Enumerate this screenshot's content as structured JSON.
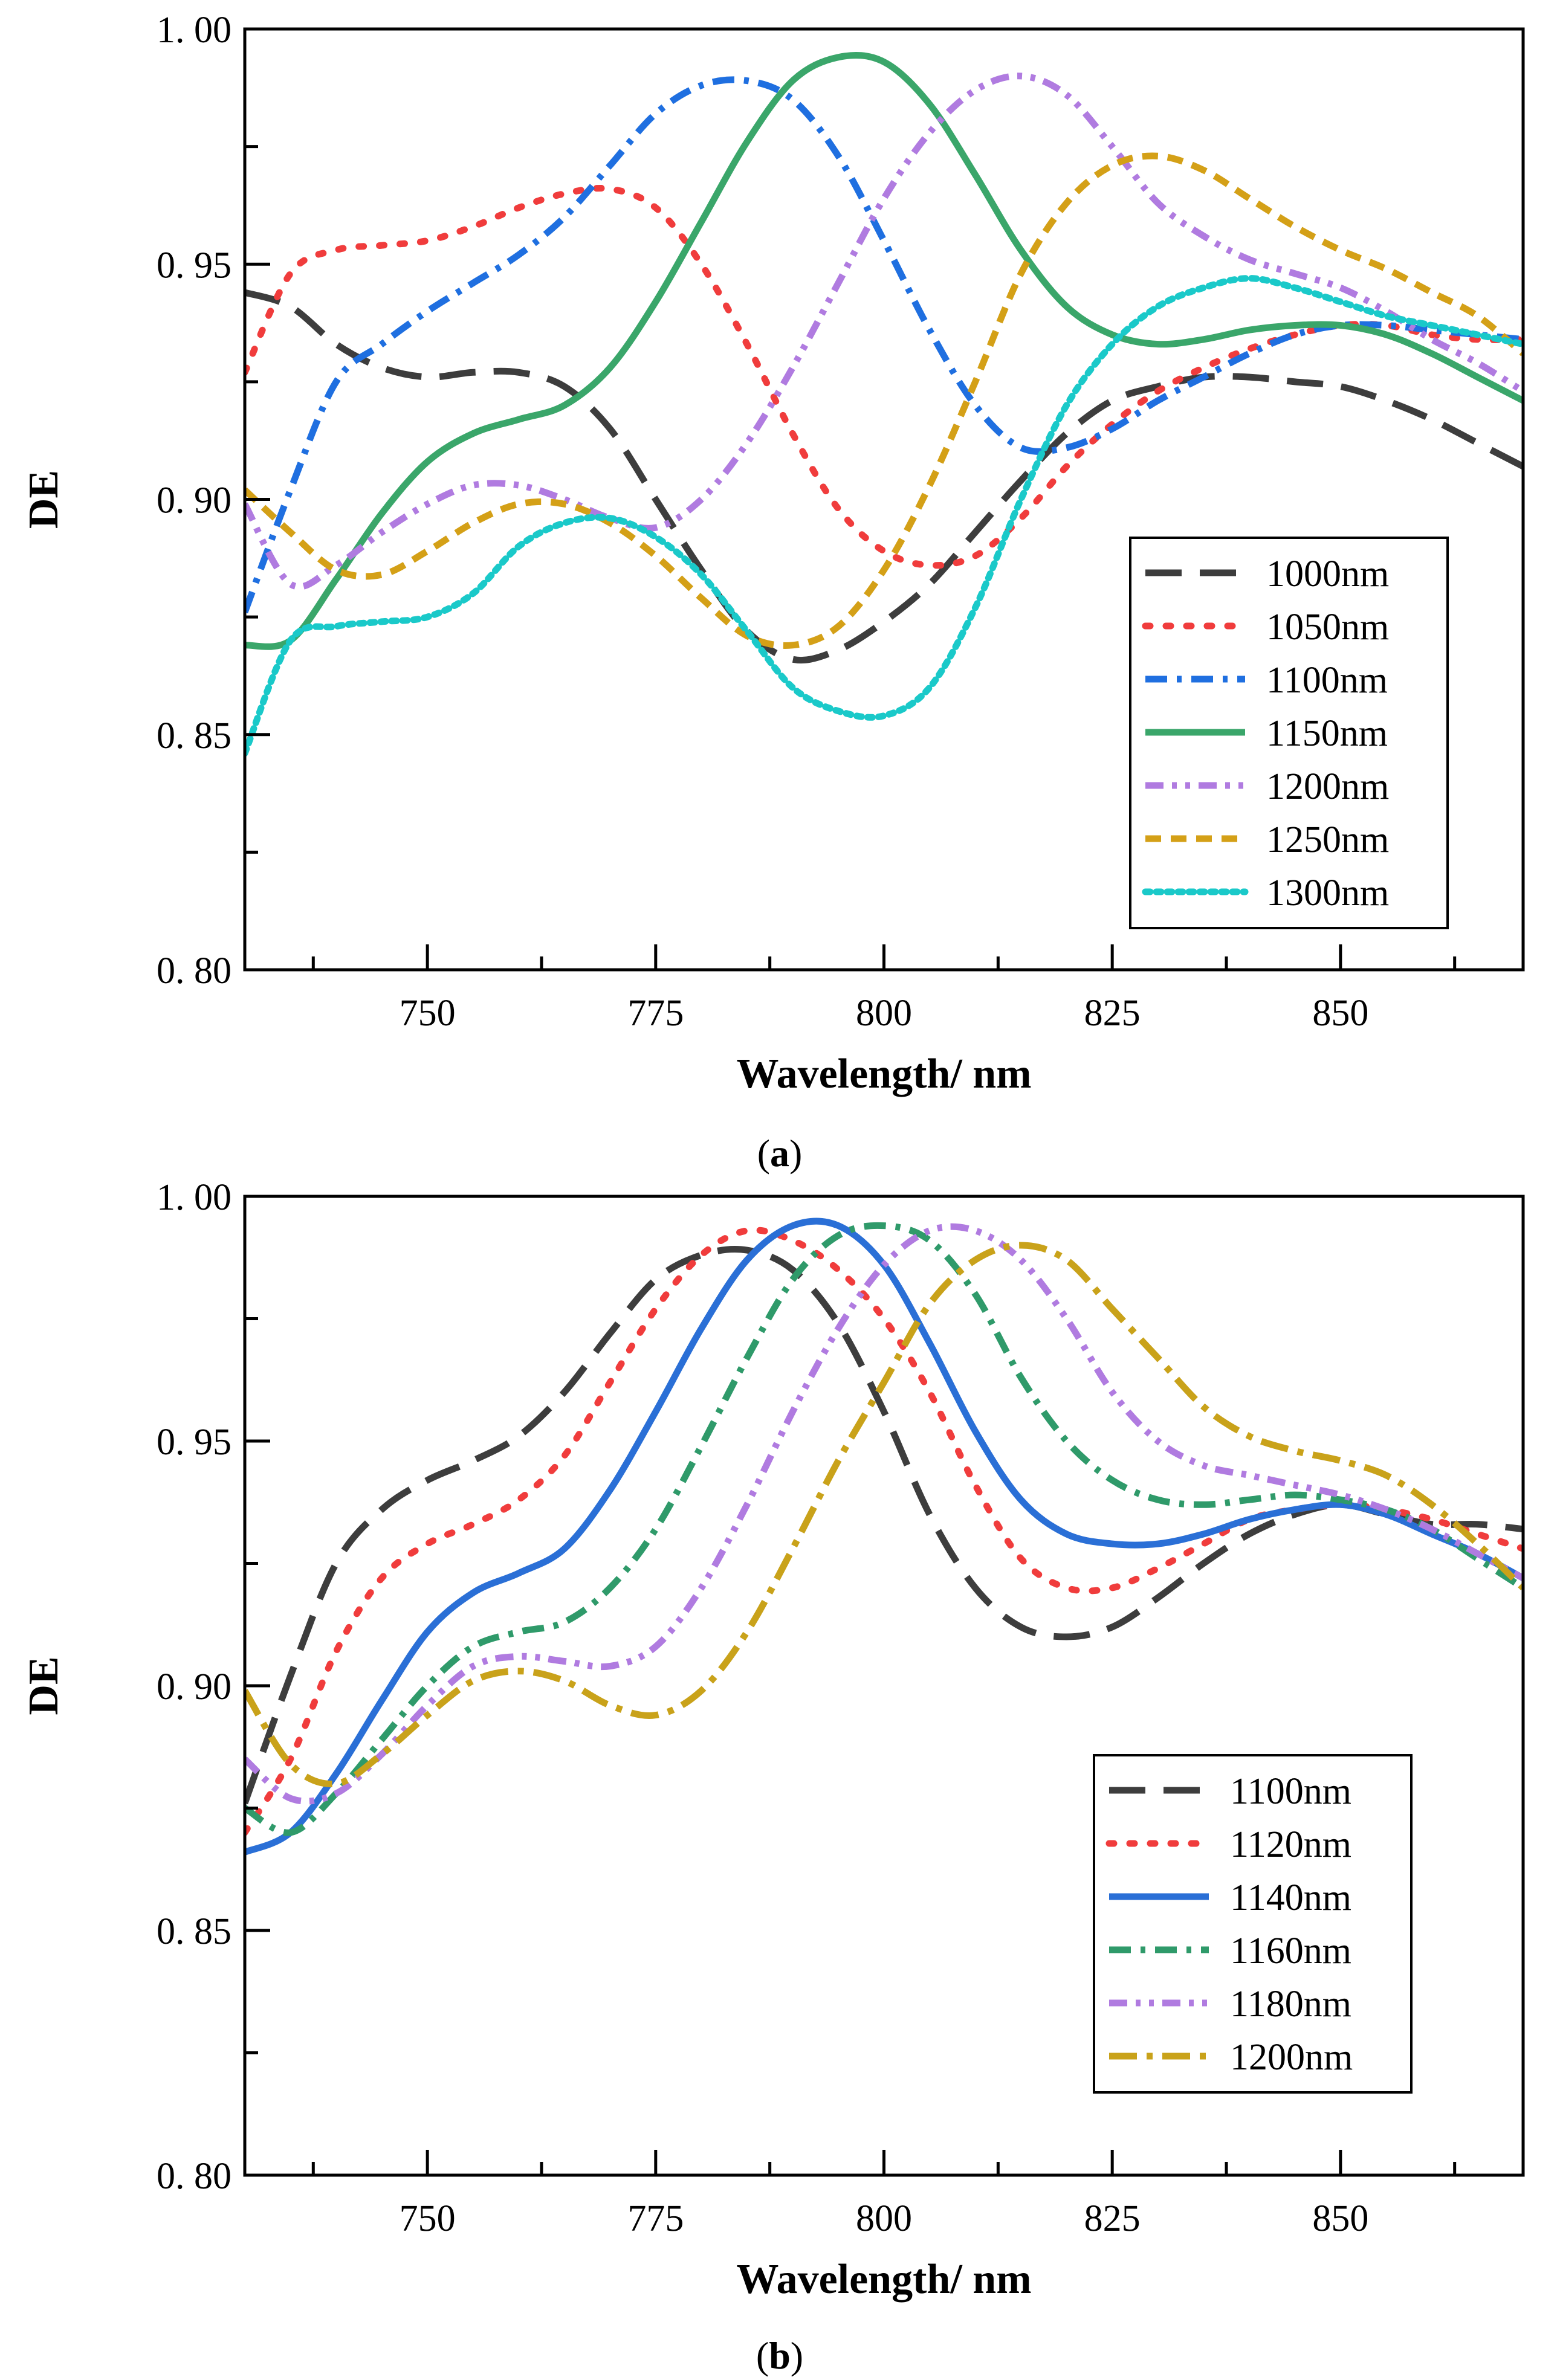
{
  "chart_data": [
    {
      "panel": "a",
      "panel_label": "a",
      "type": "line",
      "title": "",
      "xlabel": "Wavelength/ nm",
      "ylabel": "DE",
      "xlim": [
        730,
        870
      ],
      "ylim": [
        0.8,
        1.0
      ],
      "xticks": [
        750,
        775,
        800,
        825,
        850
      ],
      "xtick_labels": [
        "750",
        "775",
        "800",
        "825",
        "850"
      ],
      "yticks": [
        0.8,
        0.85,
        0.9,
        0.95,
        1.0
      ],
      "ytick_labels": [
        "0. 80",
        "0. 85",
        "0. 90",
        "0. 95",
        "1. 00"
      ],
      "grid": false,
      "legend_position": "lower-right",
      "series": [
        {
          "name": "1000nm",
          "color": "#3d3d3d",
          "dash": "long-dash",
          "x": [
            730,
            735,
            740,
            745,
            750,
            755,
            760,
            765,
            770,
            775,
            780,
            785,
            790,
            795,
            800,
            805,
            810,
            815,
            820,
            825,
            830,
            835,
            840,
            845,
            850,
            855,
            860,
            865,
            870
          ],
          "values": [
            0.944,
            0.941,
            0.933,
            0.928,
            0.926,
            0.927,
            0.927,
            0.924,
            0.915,
            0.9,
            0.885,
            0.872,
            0.866,
            0.868,
            0.874,
            0.882,
            0.893,
            0.904,
            0.914,
            0.921,
            0.924,
            0.926,
            0.926,
            0.925,
            0.924,
            0.921,
            0.917,
            0.912,
            0.907
          ]
        },
        {
          "name": "1050nm",
          "color": "#f03c3c",
          "dash": "dotted-sparse",
          "x": [
            730,
            735,
            740,
            745,
            750,
            755,
            760,
            765,
            770,
            775,
            780,
            785,
            790,
            795,
            800,
            805,
            810,
            815,
            820,
            825,
            830,
            835,
            840,
            845,
            850,
            855,
            860,
            865,
            870
          ],
          "values": [
            0.927,
            0.948,
            0.953,
            0.954,
            0.955,
            0.958,
            0.962,
            0.965,
            0.966,
            0.962,
            0.95,
            0.933,
            0.914,
            0.898,
            0.889,
            0.886,
            0.888,
            0.896,
            0.907,
            0.916,
            0.923,
            0.928,
            0.932,
            0.935,
            0.937,
            0.937,
            0.935,
            0.934,
            0.934
          ]
        },
        {
          "name": "1100nm",
          "color": "#1f6fe0",
          "dash": "dash-dot",
          "x": [
            730,
            735,
            740,
            745,
            750,
            755,
            760,
            765,
            770,
            775,
            780,
            785,
            790,
            795,
            800,
            805,
            810,
            815,
            820,
            825,
            830,
            835,
            840,
            845,
            850,
            855,
            860,
            865,
            870
          ],
          "values": [
            0.876,
            0.902,
            0.925,
            0.933,
            0.94,
            0.946,
            0.952,
            0.96,
            0.971,
            0.982,
            0.988,
            0.989,
            0.985,
            0.973,
            0.955,
            0.936,
            0.92,
            0.911,
            0.911,
            0.915,
            0.921,
            0.926,
            0.931,
            0.935,
            0.937,
            0.937,
            0.936,
            0.935,
            0.934
          ]
        },
        {
          "name": "1150nm",
          "color": "#3aa66a",
          "dash": "solid",
          "x": [
            730,
            735,
            740,
            745,
            750,
            755,
            760,
            765,
            770,
            775,
            780,
            785,
            790,
            795,
            800,
            805,
            810,
            815,
            820,
            825,
            830,
            835,
            840,
            845,
            850,
            855,
            860,
            865,
            870
          ],
          "values": [
            0.869,
            0.87,
            0.883,
            0.897,
            0.908,
            0.914,
            0.917,
            0.92,
            0.928,
            0.942,
            0.959,
            0.976,
            0.989,
            0.994,
            0.993,
            0.984,
            0.969,
            0.953,
            0.941,
            0.935,
            0.933,
            0.934,
            0.936,
            0.937,
            0.937,
            0.935,
            0.931,
            0.926,
            0.921
          ]
        },
        {
          "name": "1200nm",
          "color": "#b07be0",
          "dash": "dash-dot-dot",
          "x": [
            730,
            735,
            740,
            745,
            750,
            755,
            760,
            765,
            770,
            775,
            780,
            785,
            790,
            795,
            800,
            805,
            810,
            815,
            820,
            825,
            830,
            835,
            840,
            845,
            850,
            855,
            860,
            865,
            870
          ],
          "values": [
            0.899,
            0.882,
            0.886,
            0.893,
            0.899,
            0.903,
            0.903,
            0.9,
            0.896,
            0.894,
            0.9,
            0.912,
            0.928,
            0.946,
            0.964,
            0.978,
            0.987,
            0.99,
            0.986,
            0.975,
            0.963,
            0.956,
            0.951,
            0.948,
            0.945,
            0.94,
            0.934,
            0.929,
            0.923
          ]
        },
        {
          "name": "1250nm",
          "color": "#d4a017",
          "dash": "short-dash",
          "x": [
            730,
            735,
            740,
            745,
            750,
            755,
            760,
            765,
            770,
            775,
            780,
            785,
            790,
            795,
            800,
            805,
            810,
            815,
            820,
            825,
            830,
            835,
            840,
            845,
            850,
            855,
            860,
            865,
            870
          ],
          "values": [
            0.902,
            0.893,
            0.885,
            0.884,
            0.889,
            0.895,
            0.899,
            0.899,
            0.895,
            0.888,
            0.879,
            0.871,
            0.869,
            0.873,
            0.885,
            0.903,
            0.925,
            0.948,
            0.963,
            0.971,
            0.973,
            0.97,
            0.964,
            0.958,
            0.953,
            0.949,
            0.944,
            0.939,
            0.931
          ]
        },
        {
          "name": "1300nm",
          "color": "#1ac9c9",
          "dash": "dotted-dense",
          "x": [
            730,
            735,
            740,
            745,
            750,
            755,
            760,
            765,
            770,
            775,
            780,
            785,
            790,
            795,
            800,
            805,
            810,
            815,
            820,
            825,
            830,
            835,
            840,
            845,
            850,
            855,
            860,
            865,
            870
          ],
          "values": [
            0.846,
            0.87,
            0.873,
            0.874,
            0.875,
            0.88,
            0.89,
            0.895,
            0.896,
            0.892,
            0.884,
            0.872,
            0.86,
            0.855,
            0.854,
            0.86,
            0.877,
            0.9,
            0.92,
            0.933,
            0.941,
            0.945,
            0.947,
            0.945,
            0.942,
            0.939,
            0.937,
            0.935,
            0.933
          ]
        }
      ]
    },
    {
      "panel": "b",
      "panel_label": "b",
      "type": "line",
      "title": "",
      "xlabel": "Wavelength/ nm",
      "ylabel": "DE",
      "xlim": [
        730,
        870
      ],
      "ylim": [
        0.8,
        1.0
      ],
      "xticks": [
        750,
        775,
        800,
        825,
        850
      ],
      "xtick_labels": [
        "750",
        "775",
        "800",
        "825",
        "850"
      ],
      "yticks": [
        0.8,
        0.85,
        0.9,
        0.95,
        1.0
      ],
      "ytick_labels": [
        "0. 80",
        "0. 85",
        "0. 90",
        "0. 95",
        "1. 00"
      ],
      "grid": false,
      "legend_position": "lower-right",
      "series": [
        {
          "name": "1100nm",
          "color": "#3d3d3d",
          "dash": "long-dash",
          "x": [
            730,
            735,
            740,
            745,
            750,
            755,
            760,
            765,
            770,
            775,
            780,
            785,
            790,
            795,
            800,
            805,
            810,
            815,
            820,
            825,
            830,
            835,
            840,
            845,
            850,
            855,
            860,
            865,
            870
          ],
          "values": [
            0.876,
            0.902,
            0.925,
            0.936,
            0.942,
            0.946,
            0.951,
            0.96,
            0.972,
            0.983,
            0.988,
            0.989,
            0.985,
            0.974,
            0.956,
            0.935,
            0.92,
            0.912,
            0.91,
            0.912,
            0.918,
            0.925,
            0.931,
            0.935,
            0.937,
            0.935,
            0.933,
            0.933,
            0.932
          ]
        },
        {
          "name": "1120nm",
          "color": "#f03c3c",
          "dash": "dotted-sparse",
          "x": [
            730,
            735,
            740,
            745,
            750,
            755,
            760,
            765,
            770,
            775,
            780,
            785,
            790,
            795,
            800,
            805,
            810,
            815,
            820,
            825,
            830,
            835,
            840,
            845,
            850,
            855,
            860,
            865,
            870
          ],
          "values": [
            0.87,
            0.885,
            0.907,
            0.922,
            0.929,
            0.933,
            0.938,
            0.947,
            0.962,
            0.977,
            0.988,
            0.993,
            0.991,
            0.985,
            0.975,
            0.96,
            0.941,
            0.926,
            0.92,
            0.92,
            0.924,
            0.929,
            0.934,
            0.936,
            0.937,
            0.936,
            0.934,
            0.931,
            0.928
          ]
        },
        {
          "name": "1140nm",
          "color": "#2a6fd6",
          "dash": "solid",
          "x": [
            730,
            735,
            740,
            745,
            750,
            755,
            760,
            765,
            770,
            775,
            780,
            785,
            790,
            795,
            800,
            805,
            810,
            815,
            820,
            825,
            830,
            835,
            840,
            845,
            850,
            855,
            860,
            865,
            870
          ],
          "values": [
            0.866,
            0.87,
            0.882,
            0.897,
            0.911,
            0.919,
            0.923,
            0.928,
            0.94,
            0.956,
            0.973,
            0.987,
            0.994,
            0.994,
            0.986,
            0.97,
            0.952,
            0.938,
            0.931,
            0.929,
            0.929,
            0.931,
            0.934,
            0.936,
            0.937,
            0.935,
            0.931,
            0.927,
            0.922
          ]
        },
        {
          "name": "1160nm",
          "color": "#2f9a6a",
          "dash": "dash-dot",
          "x": [
            730,
            735,
            740,
            745,
            750,
            755,
            760,
            765,
            770,
            775,
            780,
            785,
            790,
            795,
            800,
            805,
            810,
            815,
            820,
            825,
            830,
            835,
            840,
            845,
            850,
            855,
            860,
            865,
            870
          ],
          "values": [
            0.875,
            0.87,
            0.878,
            0.889,
            0.9,
            0.908,
            0.911,
            0.913,
            0.92,
            0.932,
            0.949,
            0.967,
            0.983,
            0.992,
            0.994,
            0.991,
            0.98,
            0.963,
            0.95,
            0.942,
            0.938,
            0.937,
            0.938,
            0.939,
            0.938,
            0.936,
            0.932,
            0.926,
            0.92
          ]
        },
        {
          "name": "1180nm",
          "color": "#b07be0",
          "dash": "dash-dot-dot",
          "x": [
            730,
            735,
            740,
            745,
            750,
            755,
            760,
            765,
            770,
            775,
            780,
            785,
            790,
            795,
            800,
            805,
            810,
            815,
            820,
            825,
            830,
            835,
            840,
            845,
            850,
            855,
            860,
            865,
            870
          ],
          "values": [
            0.885,
            0.877,
            0.878,
            0.886,
            0.896,
            0.904,
            0.906,
            0.905,
            0.904,
            0.908,
            0.92,
            0.937,
            0.956,
            0.973,
            0.986,
            0.993,
            0.993,
            0.987,
            0.975,
            0.96,
            0.95,
            0.945,
            0.943,
            0.941,
            0.939,
            0.936,
            0.932,
            0.927,
            0.922
          ]
        },
        {
          "name": "1200nm",
          "color": "#c9a21a",
          "dash": "long-dash-dot",
          "x": [
            730,
            735,
            740,
            745,
            750,
            755,
            760,
            765,
            770,
            775,
            780,
            785,
            790,
            795,
            800,
            805,
            810,
            815,
            820,
            825,
            830,
            835,
            840,
            845,
            850,
            855,
            860,
            865,
            870
          ],
          "values": [
            0.899,
            0.884,
            0.88,
            0.886,
            0.894,
            0.901,
            0.903,
            0.901,
            0.896,
            0.894,
            0.899,
            0.911,
            0.928,
            0.946,
            0.962,
            0.978,
            0.987,
            0.99,
            0.987,
            0.977,
            0.967,
            0.957,
            0.951,
            0.948,
            0.946,
            0.943,
            0.937,
            0.929,
            0.92
          ]
        }
      ]
    }
  ]
}
